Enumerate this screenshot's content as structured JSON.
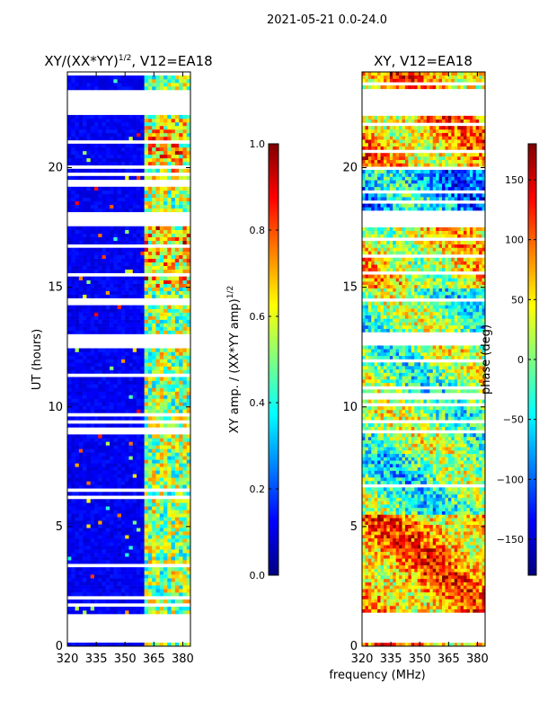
{
  "figure": {
    "suptitle": "2021-05-21 0.0-24.0",
    "shared_xlabel": "frequency (MHz)"
  },
  "chart_data": [
    {
      "type": "heatmap",
      "title_main": "XY/(XX*YY)",
      "title_sup": "1/2",
      "title_rest": ", V12=EA18",
      "ylabel": "UT (hours)",
      "xlim": [
        320,
        384
      ],
      "ylim": [
        0,
        24
      ],
      "xticks": [
        320,
        335,
        350,
        365,
        380
      ],
      "yticks": [
        0,
        5,
        10,
        15,
        20
      ],
      "colorbar": {
        "label_main": "XY amp. / (XX*YY amp)",
        "label_sup": "1/2",
        "min": 0.0,
        "max": 1.0,
        "ticks": [
          "0.0",
          "0.2",
          "0.4",
          "0.6",
          "0.8",
          "1.0"
        ],
        "tick_values": [
          0.0,
          0.2,
          0.4,
          0.6,
          0.8,
          1.0
        ]
      },
      "gaps_hours": [
        [
          0.1,
          1.4
        ],
        [
          12.6,
          13.1
        ],
        [
          17.5,
          18.2
        ],
        [
          22.2,
          23.3
        ]
      ],
      "bright_band_mhz": [
        361,
        384
      ],
      "background_level": 0.08
    },
    {
      "type": "heatmap",
      "title": "XY, V12=EA18",
      "ylabel": "phase (deg)",
      "xlim": [
        320,
        384
      ],
      "ylim": [
        0,
        24
      ],
      "xticks": [
        320,
        335,
        350,
        365,
        380
      ],
      "yticks": [
        0,
        5,
        10,
        15,
        20
      ],
      "colorbar": {
        "label": "phase (deg)",
        "min": -180,
        "max": 180,
        "ticks": [
          "150",
          "100",
          "50",
          "0",
          "−50",
          "−100",
          "−150"
        ],
        "tick_values": [
          150,
          100,
          50,
          0,
          -50,
          -100,
          -150
        ]
      },
      "gaps_hours": [
        [
          0.1,
          1.4
        ],
        [
          12.6,
          13.1
        ],
        [
          17.5,
          18.2
        ],
        [
          22.2,
          23.3
        ]
      ]
    }
  ],
  "colormap": {
    "name": "jet",
    "stops": [
      "#00007f",
      "#0000ff",
      "#007fff",
      "#00ffff",
      "#7fff7f",
      "#ffff00",
      "#ff7f00",
      "#ff0000",
      "#7f0000"
    ]
  }
}
